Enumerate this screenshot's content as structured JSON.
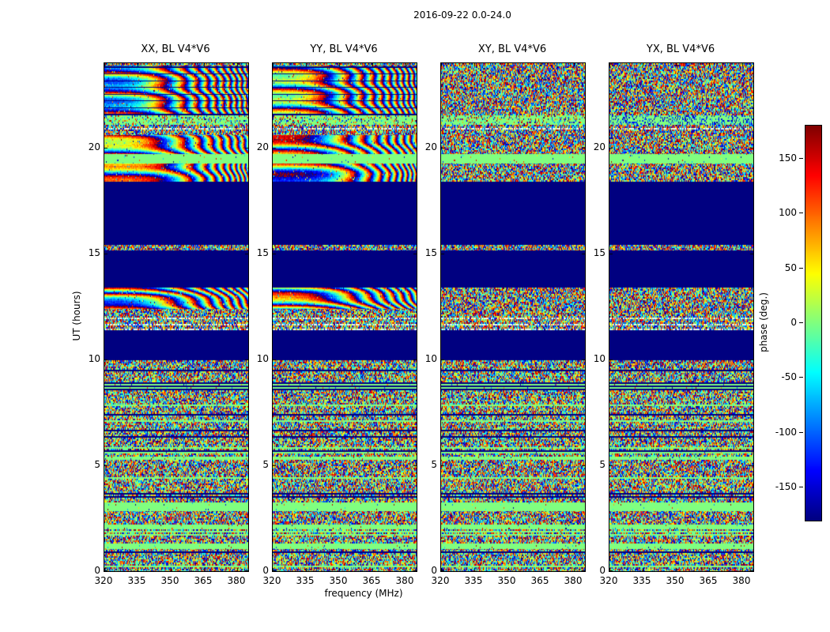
{
  "title": "2016-09-22 0.0-24.0",
  "panels": [
    {
      "title": "XX, BL V4*V6",
      "kind": "parallel"
    },
    {
      "title": "YY, BL V4*V6",
      "kind": "parallel"
    },
    {
      "title": "XY, BL V4*V6",
      "kind": "cross"
    },
    {
      "title": "YX, BL V4*V6",
      "kind": "cross"
    }
  ],
  "axes": {
    "xlabel": "frequency (MHz)",
    "ylabel": "UT (hours)",
    "xticks": [
      320,
      335,
      350,
      365,
      380
    ],
    "yticks": [
      0,
      5,
      10,
      15,
      20
    ],
    "xlim": [
      320,
      385
    ],
    "ylim": [
      0,
      24
    ]
  },
  "colorbar": {
    "label": "phase (deg.)",
    "ticks": [
      150,
      100,
      50,
      0,
      -50,
      -100,
      -150
    ],
    "vmin": -180,
    "vmax": 180,
    "colormap": "jet",
    "top_color": "#7f0000",
    "bottom_color": "#00007f"
  },
  "chart_data": {
    "type": "heatmap",
    "title": "2016-09-22 0.0-24.0",
    "xlabel": "frequency (MHz)",
    "ylabel": "UT (hours)",
    "x_range": [
      320,
      385
    ],
    "y_range": [
      0,
      24
    ],
    "value_label": "phase (deg.)",
    "value_range": [
      -180,
      180
    ],
    "colormap": "jet",
    "panels": [
      "XX, BL V4*V6",
      "YY, BL V4*V6",
      "XY, BL V4*V6",
      "YX, BL V4*V6"
    ],
    "bands": [
      {
        "t0": 0.0,
        "t1": 1.05,
        "type": "striped"
      },
      {
        "t0": 1.05,
        "t1": 1.3,
        "type": "green"
      },
      {
        "t0": 1.3,
        "t1": 2.05,
        "type": "striped"
      },
      {
        "t0": 2.05,
        "t1": 2.2,
        "type": "green"
      },
      {
        "t0": 2.2,
        "t1": 2.85,
        "type": "noise"
      },
      {
        "t0": 2.85,
        "t1": 3.25,
        "type": "green"
      },
      {
        "t0": 3.25,
        "t1": 4.5,
        "type": "striped"
      },
      {
        "t0": 4.5,
        "t1": 5.05,
        "type": "noise"
      },
      {
        "t0": 5.05,
        "t1": 9.75,
        "type": "striped"
      },
      {
        "t0": 9.75,
        "t1": 9.95,
        "type": "noise"
      },
      {
        "t0": 9.95,
        "t1": 11.4,
        "type": "flag"
      },
      {
        "t0": 11.4,
        "t1": 12.4,
        "type": "dotted"
      },
      {
        "t0": 12.4,
        "t1": 13.4,
        "type": "fringe",
        "cycles": 7,
        "exp": 3,
        "base": 0,
        "drift": 2.2
      },
      {
        "t0": 13.4,
        "t1": 15.15,
        "type": "flag"
      },
      {
        "t0": 15.15,
        "t1": 15.4,
        "type": "noise"
      },
      {
        "t0": 15.4,
        "t1": 18.4,
        "type": "flag"
      },
      {
        "t0": 18.4,
        "t1": 19.25,
        "type": "fringe",
        "cycles": 9,
        "exp": 4,
        "base": 150,
        "drift": 0.7
      },
      {
        "t0": 19.25,
        "t1": 19.7,
        "type": "green"
      },
      {
        "t0": 19.7,
        "t1": 20.6,
        "type": "fringe",
        "cycles": 8,
        "exp": 3,
        "base": 140,
        "drift": 1.2
      },
      {
        "t0": 20.6,
        "t1": 21.1,
        "type": "dotted"
      },
      {
        "t0": 21.1,
        "t1": 21.55,
        "type": "sparse"
      },
      {
        "t0": 21.55,
        "t1": 23.9,
        "type": "fringe",
        "cycles": 10,
        "exp": 3,
        "base": 60,
        "drift": 2.5,
        "darklines": true
      },
      {
        "t0": 23.9,
        "t1": 24.0,
        "type": "noise"
      }
    ]
  }
}
